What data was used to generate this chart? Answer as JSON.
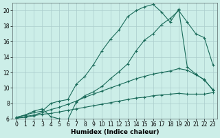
{
  "xlabel": "Humidex (Indice chaleur)",
  "xlim": [
    -0.5,
    23.5
  ],
  "ylim": [
    6,
    21
  ],
  "xticks": [
    0,
    1,
    2,
    3,
    4,
    5,
    6,
    7,
    8,
    9,
    10,
    11,
    12,
    13,
    14,
    15,
    16,
    17,
    18,
    19,
    20,
    21,
    22,
    23
  ],
  "yticks": [
    6,
    8,
    10,
    12,
    14,
    16,
    18,
    20
  ],
  "bg_color": "#cceee8",
  "grid_color": "#aacccc",
  "line_color": "#1a6b5a",
  "curves": [
    {
      "x": [
        0,
        1,
        2,
        3,
        4,
        5,
        6,
        7,
        8,
        9,
        10,
        11,
        12,
        13,
        14,
        15,
        16,
        17,
        18,
        19,
        20,
        21,
        22,
        23
      ],
      "y": [
        6.2,
        6.5,
        6.8,
        7.0,
        8.0,
        8.3,
        8.5,
        10.5,
        11.5,
        13.0,
        14.8,
        16.3,
        17.5,
        19.2,
        20.0,
        20.5,
        20.8,
        19.8,
        18.5,
        20.2,
        12.7,
        11.8,
        11.0,
        9.8
      ]
    },
    {
      "x": [
        0,
        1,
        2,
        3,
        4,
        5,
        6,
        7,
        8,
        9,
        10,
        11,
        12,
        13,
        14,
        15,
        16,
        17,
        18,
        19,
        20,
        21,
        22,
        23
      ],
      "y": [
        6.2,
        6.5,
        7.0,
        7.3,
        6.3,
        6.0,
        5.9,
        8.2,
        9.0,
        9.5,
        10.2,
        11.2,
        12.1,
        13.1,
        14.8,
        16.2,
        17.0,
        18.2,
        19.0,
        20.0,
        18.5,
        17.0,
        16.5,
        13.0
      ]
    },
    {
      "x": [
        0,
        1,
        2,
        3,
        4,
        5,
        6,
        7,
        8,
        9,
        10,
        11,
        12,
        13,
        14,
        15,
        16,
        17,
        18,
        19,
        20,
        21,
        22,
        23
      ],
      "y": [
        6.1,
        6.3,
        6.5,
        6.8,
        7.2,
        7.5,
        7.9,
        8.3,
        8.8,
        9.2,
        9.6,
        10.0,
        10.4,
        10.8,
        11.2,
        11.5,
        11.8,
        12.0,
        12.2,
        12.5,
        12.3,
        11.7,
        11.1,
        9.7
      ]
    },
    {
      "x": [
        0,
        1,
        2,
        3,
        4,
        5,
        6,
        7,
        8,
        9,
        10,
        11,
        12,
        13,
        14,
        15,
        16,
        17,
        18,
        19,
        20,
        21,
        22,
        23
      ],
      "y": [
        6.1,
        6.2,
        6.4,
        6.6,
        6.7,
        6.9,
        7.1,
        7.3,
        7.5,
        7.7,
        7.9,
        8.1,
        8.3,
        8.5,
        8.7,
        8.8,
        9.0,
        9.1,
        9.2,
        9.3,
        9.2,
        9.2,
        9.2,
        9.4
      ]
    }
  ]
}
